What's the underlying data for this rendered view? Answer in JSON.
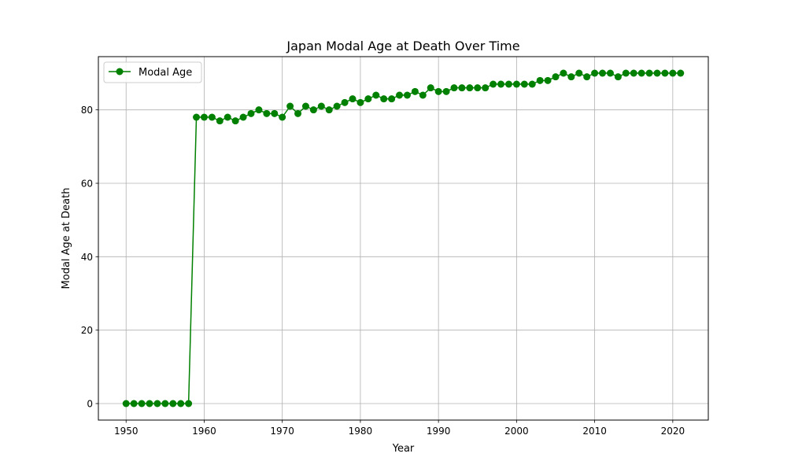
{
  "chart_data": {
    "type": "line",
    "title": "Japan Modal Age at Death Over Time",
    "xlabel": "Year",
    "ylabel": "Modal Age at Death",
    "xlim": [
      1946.45,
      2024.55
    ],
    "ylim": [
      -4.5,
      94.5
    ],
    "xticks": [
      1950,
      1960,
      1970,
      1980,
      1990,
      2000,
      2010,
      2020
    ],
    "yticks": [
      0,
      20,
      40,
      60,
      80
    ],
    "grid": true,
    "legend_position": "top-left",
    "series": [
      {
        "name": "Modal Age",
        "color": "#008000",
        "marker": "circle",
        "x": [
          1950,
          1951,
          1952,
          1953,
          1954,
          1955,
          1956,
          1957,
          1958,
          1959,
          1960,
          1961,
          1962,
          1963,
          1964,
          1965,
          1966,
          1967,
          1968,
          1969,
          1970,
          1971,
          1972,
          1973,
          1974,
          1975,
          1976,
          1977,
          1978,
          1979,
          1980,
          1981,
          1982,
          1983,
          1984,
          1985,
          1986,
          1987,
          1988,
          1989,
          1990,
          1991,
          1992,
          1993,
          1994,
          1995,
          1996,
          1997,
          1998,
          1999,
          2000,
          2001,
          2002,
          2003,
          2004,
          2005,
          2006,
          2007,
          2008,
          2009,
          2010,
          2011,
          2012,
          2013,
          2014,
          2015,
          2016,
          2017,
          2018,
          2019,
          2020,
          2021
        ],
        "y": [
          0,
          0,
          0,
          0,
          0,
          0,
          0,
          0,
          0,
          78,
          78,
          78,
          77,
          78,
          77,
          78,
          79,
          80,
          79,
          79,
          78,
          81,
          79,
          81,
          80,
          81,
          80,
          81,
          82,
          83,
          82,
          83,
          84,
          83,
          83,
          84,
          84,
          85,
          84,
          86,
          85,
          85,
          86,
          86,
          86,
          86,
          86,
          87,
          87,
          87,
          87,
          87,
          87,
          88,
          88,
          89,
          90,
          89,
          90,
          89,
          90,
          90,
          90,
          89,
          90,
          90,
          90,
          90,
          90,
          90,
          90,
          90
        ]
      }
    ]
  }
}
